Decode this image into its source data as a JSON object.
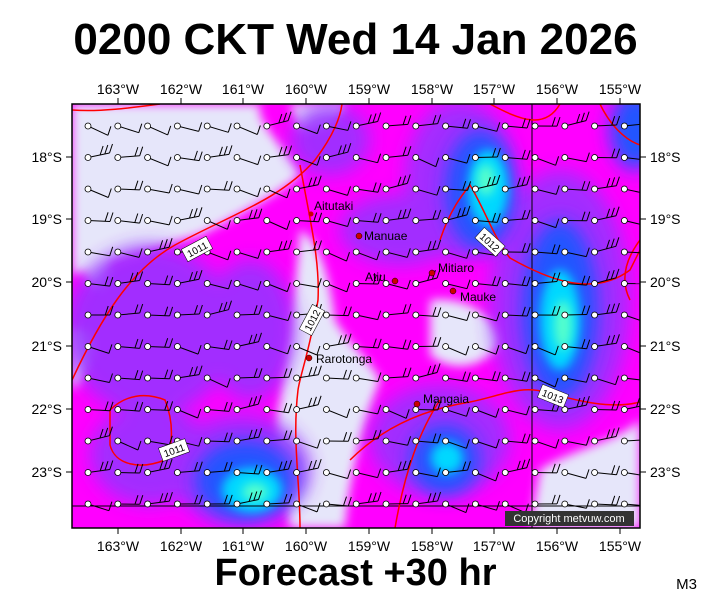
{
  "header": {
    "title": "0200 CKT Wed 14 Jan 2026"
  },
  "footer": {
    "forecast": "Forecast +30 hr",
    "map_code": "M3"
  },
  "map": {
    "lon_labels": [
      "163°W",
      "162°W",
      "161°W",
      "160°W",
      "159°W",
      "158°W",
      "157°W",
      "156°W",
      "155°W"
    ],
    "lat_labels": [
      "18°S",
      "19°S",
      "20°S",
      "21°S",
      "22°S",
      "23°S"
    ],
    "places": [
      {
        "name": "Aitutaki"
      },
      {
        "name": "Manuae"
      },
      {
        "name": "Mitiaro"
      },
      {
        "name": "Atiu"
      },
      {
        "name": "Mauke"
      },
      {
        "name": "Rarotonga"
      },
      {
        "name": "Mangaia"
      }
    ],
    "isobars": [
      {
        "label": "1011"
      },
      {
        "label": "1012"
      },
      {
        "label": "1012"
      },
      {
        "label": "1013"
      },
      {
        "label": "1011"
      }
    ],
    "copyright": "Copyright metvuw.com",
    "colors": {
      "calm": "#e6e6fa",
      "light": "#ff00ff",
      "moderate": "#9900ff",
      "fresh": "#2244ff",
      "strong": "#00ccff",
      "gale": "#44ffcc",
      "isobar": "#ff0000"
    }
  }
}
